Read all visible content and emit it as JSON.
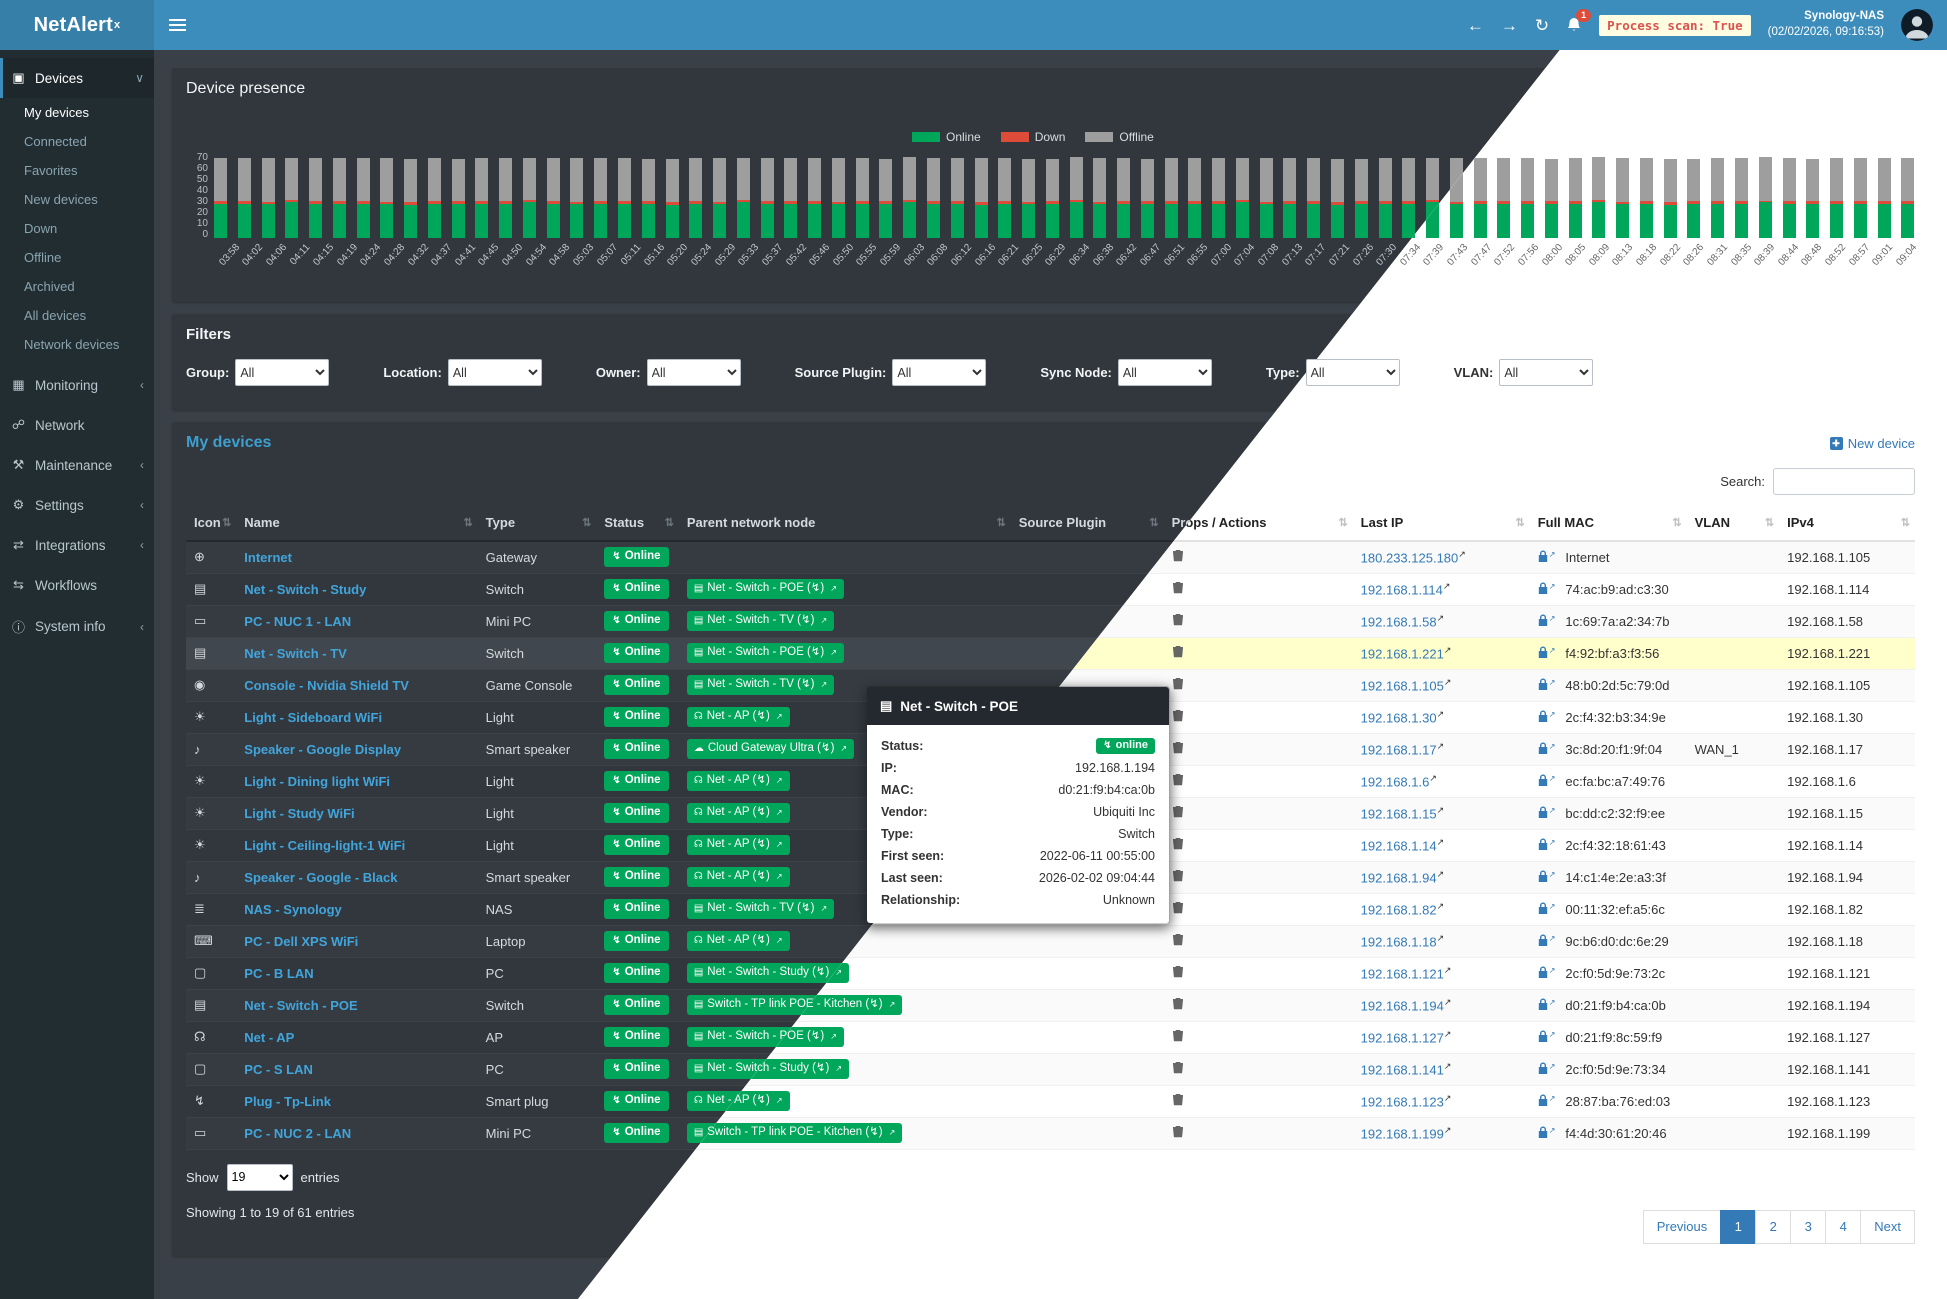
{
  "brand": {
    "name": "NetAlert",
    "sup": "x"
  },
  "header": {
    "notification_count": "1",
    "process_scan": "Process scan: True",
    "nas_name": "Synology-NAS",
    "nas_time": "(02/02/2026, 09:16:53)"
  },
  "colors": {
    "header": "#3c8dbc",
    "sidebar": "#222d32",
    "online": "#00a65a",
    "down": "#dd4b39",
    "offline": "#9e9e9e",
    "link_light": "#337ab7",
    "link_dark": "#41a5dc",
    "highlight_row": "#ffffcc",
    "process_scan_text": "#d9534f"
  },
  "icons": {
    "globe": "⊕",
    "switch": "▤",
    "minipc": "▭",
    "console": "◉",
    "light": "☀",
    "speaker": "♪",
    "nas": "≣",
    "laptop": "⌨",
    "desktop": "▢",
    "wifi": "☊",
    "cloud": "☁",
    "plug": "↯",
    "sort": "⇅",
    "ext": "↗"
  },
  "sidebar": {
    "sections": [
      {
        "label": "Devices",
        "icon": "devices-icon",
        "glyph": "▣",
        "chevron": "∨",
        "active": true,
        "children": [
          "My devices",
          "Connected",
          "Favorites",
          "New devices",
          "Down",
          "Offline",
          "Archived",
          "All devices",
          "Network devices"
        ]
      },
      {
        "label": "Monitoring",
        "icon": "monitoring-icon",
        "glyph": "▦",
        "chevron": "‹"
      },
      {
        "label": "Network",
        "icon": "network-icon",
        "glyph": "☍",
        "chevron": ""
      },
      {
        "label": "Maintenance",
        "icon": "maintenance-icon",
        "glyph": "⚒",
        "chevron": "‹"
      },
      {
        "label": "Settings",
        "icon": "settings-icon",
        "glyph": "⚙",
        "chevron": "‹"
      },
      {
        "label": "Integrations",
        "icon": "integrations-icon",
        "glyph": "⇄",
        "chevron": "‹"
      },
      {
        "label": "Workflows",
        "icon": "workflows-icon",
        "glyph": "⇆",
        "chevron": ""
      },
      {
        "label": "System info",
        "icon": "system-info-icon",
        "glyph": "ⓘ",
        "chevron": "‹"
      }
    ]
  },
  "chart": {
    "title": "Device presence",
    "y_ticks": [
      70,
      60,
      50,
      40,
      30,
      20,
      10,
      0
    ]
  },
  "chart_data": {
    "type": "bar",
    "stacked": true,
    "title": "Device presence",
    "xlabel": "",
    "ylabel": "",
    "ylim": [
      0,
      70
    ],
    "legend_position": "top",
    "grid": false,
    "categories": [
      "03:58",
      "04:02",
      "04:06",
      "04:11",
      "04:15",
      "04:19",
      "04:24",
      "04:28",
      "04:32",
      "04:37",
      "04:41",
      "04:45",
      "04:50",
      "04:54",
      "04:58",
      "05:03",
      "05:07",
      "05:11",
      "05:16",
      "05:20",
      "05:24",
      "05:29",
      "05:33",
      "05:37",
      "05:42",
      "05:46",
      "05:50",
      "05:55",
      "05:59",
      "06:03",
      "06:08",
      "06:12",
      "06:16",
      "06:21",
      "06:25",
      "06:29",
      "06:34",
      "06:38",
      "06:42",
      "06:47",
      "06:51",
      "06:55",
      "07:00",
      "07:04",
      "07:08",
      "07:13",
      "07:17",
      "07:21",
      "07:26",
      "07:30",
      "07:34",
      "07:39",
      "07:43",
      "07:47",
      "07:52",
      "07:56",
      "08:00",
      "08:05",
      "08:09",
      "08:13",
      "08:18",
      "08:22",
      "08:26",
      "08:31",
      "08:35",
      "08:39",
      "08:44",
      "08:48",
      "08:52",
      "08:57",
      "09:01",
      "09:04"
    ],
    "series": [
      {
        "name": "Online",
        "color": "#00a65a",
        "values": [
          28,
          28,
          28,
          29,
          28,
          28,
          28,
          28,
          27,
          28,
          28,
          28,
          28,
          29,
          28,
          28,
          28,
          28,
          28,
          27,
          28,
          28,
          29,
          28,
          28,
          28,
          28,
          28,
          28,
          29,
          28,
          28,
          27,
          28,
          28,
          28,
          29,
          28,
          28,
          28,
          28,
          28,
          28,
          29,
          28,
          28,
          28,
          27,
          28,
          28,
          28,
          29,
          28,
          28,
          28,
          28,
          28,
          28,
          29,
          28,
          28,
          27,
          28,
          28,
          28,
          29,
          28,
          28,
          28,
          28,
          28,
          28
        ]
      },
      {
        "name": "Down",
        "color": "#dd4b39",
        "values": [
          2,
          2,
          1,
          2,
          2,
          2,
          2,
          1,
          2,
          2,
          2,
          2,
          2,
          2,
          2,
          1,
          2,
          2,
          2,
          2,
          2,
          1,
          2,
          2,
          2,
          2,
          1,
          2,
          2,
          2,
          2,
          2,
          2,
          2,
          1,
          2,
          2,
          1,
          2,
          2,
          2,
          2,
          2,
          2,
          1,
          2,
          2,
          2,
          2,
          2,
          2,
          2,
          1,
          2,
          2,
          2,
          2,
          2,
          2,
          1,
          2,
          2,
          2,
          2,
          2,
          1,
          2,
          2,
          2,
          2,
          2,
          2
        ]
      },
      {
        "name": "Offline",
        "color": "#9e9e9e",
        "values": [
          35,
          35,
          36,
          34,
          35,
          35,
          35,
          36,
          35,
          35,
          34,
          35,
          35,
          34,
          35,
          36,
          35,
          35,
          34,
          35,
          35,
          36,
          34,
          35,
          35,
          35,
          36,
          35,
          34,
          35,
          35,
          35,
          36,
          35,
          35,
          34,
          35,
          36,
          35,
          34,
          35,
          35,
          35,
          34,
          36,
          35,
          35,
          35,
          34,
          35,
          35,
          34,
          36,
          35,
          35,
          35,
          34,
          35,
          35,
          36,
          35,
          35,
          34,
          35,
          35,
          36,
          35,
          34,
          35,
          35,
          35,
          35
        ]
      }
    ]
  },
  "filters": {
    "title": "Filters",
    "items": [
      {
        "key": "group",
        "label": "Group:",
        "value": "All"
      },
      {
        "key": "location",
        "label": "Location:",
        "value": "All"
      },
      {
        "key": "owner",
        "label": "Owner:",
        "value": "All"
      },
      {
        "key": "source-plugin",
        "label": "Source Plugin:",
        "value": "All"
      },
      {
        "key": "sync-node",
        "label": "Sync Node:",
        "value": "All"
      },
      {
        "key": "type",
        "label": "Type:",
        "value": "All"
      },
      {
        "key": "vlan",
        "label": "VLAN:",
        "value": "All"
      }
    ]
  },
  "devices": {
    "title": "My devices",
    "new_device_label": "New device",
    "search_label": "Search:",
    "show_label": "Show",
    "show_value": "19",
    "entries_label": "entries",
    "summary": "Showing 1 to 19 of 61 entries",
    "pagination": {
      "prev": "Previous",
      "pages": [
        "1",
        "2",
        "3",
        "4"
      ],
      "active": "1",
      "next": "Next"
    }
  },
  "table": {
    "columns": [
      {
        "key": "icon",
        "label": "Icon"
      },
      {
        "key": "name",
        "label": "Name"
      },
      {
        "key": "type",
        "label": "Type"
      },
      {
        "key": "status",
        "label": "Status"
      },
      {
        "key": "parent",
        "label": "Parent network node"
      },
      {
        "key": "src",
        "label": "Source Plugin"
      },
      {
        "key": "props",
        "label": "Props / Actions"
      },
      {
        "key": "lastip",
        "label": "Last IP"
      },
      {
        "key": "mac",
        "label": "Full MAC"
      },
      {
        "key": "vlan",
        "label": "VLAN"
      },
      {
        "key": "ipv4",
        "label": "IPv4"
      }
    ],
    "rows": [
      {
        "icon": "globe",
        "name": "Internet",
        "type": "Gateway",
        "status": "Online",
        "parent": null,
        "src": "",
        "last_ip": "180.233.125.180",
        "mac": "Internet",
        "vlan": "",
        "ipv4": "192.168.1.105",
        "highlight": false
      },
      {
        "icon": "switch",
        "name": "Net - Switch - Study",
        "type": "Switch",
        "status": "Online",
        "parent": {
          "icon": "switch",
          "label": "Net - Switch - POE"
        },
        "src": "",
        "last_ip": "192.168.1.114",
        "mac": "74:ac:b9:ad:c3:30",
        "vlan": "",
        "ipv4": "192.168.1.114",
        "highlight": false
      },
      {
        "icon": "minipc",
        "name": "PC - NUC 1 - LAN",
        "type": "Mini PC",
        "status": "Online",
        "parent": {
          "icon": "switch",
          "label": "Net - Switch - TV"
        },
        "src": "",
        "last_ip": "192.168.1.58",
        "mac": "1c:69:7a:a2:34:7b",
        "vlan": "",
        "ipv4": "192.168.1.58",
        "highlight": false
      },
      {
        "icon": "switch",
        "name": "Net - Switch - TV",
        "type": "Switch",
        "status": "Online",
        "parent": {
          "icon": "switch",
          "label": "Net - Switch - POE"
        },
        "src": "",
        "last_ip": "192.168.1.221",
        "mac": "f4:92:bf:a3:f3:56",
        "vlan": "",
        "ipv4": "192.168.1.221",
        "highlight": true
      },
      {
        "icon": "console",
        "name": "Console - Nvidia Shield TV",
        "type": "Game Console",
        "status": "Online",
        "parent": {
          "icon": "switch",
          "label": "Net - Switch - TV"
        },
        "src": "",
        "last_ip": "192.168.1.105",
        "mac": "48:b0:2d:5c:79:0d",
        "vlan": "",
        "ipv4": "192.168.1.105",
        "highlight": false
      },
      {
        "icon": "light",
        "name": "Light - Sideboard WiFi",
        "type": "Light",
        "status": "Online",
        "parent": {
          "icon": "wifi",
          "label": "Net - AP"
        },
        "src": "",
        "last_ip": "192.168.1.30",
        "mac": "2c:f4:32:b3:34:9e",
        "vlan": "",
        "ipv4": "192.168.1.30",
        "highlight": false
      },
      {
        "icon": "speaker",
        "name": "Speaker - Google Display",
        "type": "Smart speaker",
        "status": "Online",
        "parent": {
          "icon": "cloud",
          "label": "Cloud Gateway Ultra"
        },
        "src": "",
        "last_ip": "192.168.1.17",
        "mac": "3c:8d:20:f1:9f:04",
        "vlan": "WAN_1",
        "ipv4": "192.168.1.17",
        "highlight": false
      },
      {
        "icon": "light",
        "name": "Light - Dining light WiFi",
        "type": "Light",
        "status": "Online",
        "parent": {
          "icon": "wifi",
          "label": "Net - AP"
        },
        "src": "",
        "last_ip": "192.168.1.6",
        "mac": "ec:fa:bc:a7:49:76",
        "vlan": "",
        "ipv4": "192.168.1.6",
        "highlight": false
      },
      {
        "icon": "light",
        "name": "Light - Study WiFi",
        "type": "Light",
        "status": "Online",
        "parent": {
          "icon": "wifi",
          "label": "Net - AP"
        },
        "src": "",
        "last_ip": "192.168.1.15",
        "mac": "bc:dd:c2:32:f9:ee",
        "vlan": "",
        "ipv4": "192.168.1.15",
        "highlight": false
      },
      {
        "icon": "light",
        "name": "Light - Ceiling-light-1 WiFi",
        "type": "Light",
        "status": "Online",
        "parent": {
          "icon": "wifi",
          "label": "Net - AP"
        },
        "src": "",
        "last_ip": "192.168.1.14",
        "mac": "2c:f4:32:18:61:43",
        "vlan": "",
        "ipv4": "192.168.1.14",
        "highlight": false
      },
      {
        "icon": "speaker",
        "name": "Speaker - Google - Black",
        "type": "Smart speaker",
        "status": "Online",
        "parent": {
          "icon": "wifi",
          "label": "Net - AP"
        },
        "src": "",
        "last_ip": "192.168.1.94",
        "mac": "14:c1:4e:2e:a3:3f",
        "vlan": "",
        "ipv4": "192.168.1.94",
        "highlight": false
      },
      {
        "icon": "nas",
        "name": "NAS - Synology",
        "type": "NAS",
        "status": "Online",
        "parent": {
          "icon": "switch",
          "label": "Net - Switch - TV"
        },
        "src": "",
        "last_ip": "192.168.1.82",
        "mac": "00:11:32:ef:a5:6c",
        "vlan": "",
        "ipv4": "192.168.1.82",
        "highlight": false
      },
      {
        "icon": "laptop",
        "name": "PC - Dell XPS WiFi",
        "type": "Laptop",
        "status": "Online",
        "parent": {
          "icon": "wifi",
          "label": "Net - AP"
        },
        "src": "",
        "last_ip": "192.168.1.18",
        "mac": "9c:b6:d0:dc:6e:29",
        "vlan": "",
        "ipv4": "192.168.1.18",
        "highlight": false
      },
      {
        "icon": "desktop",
        "name": "PC - B LAN",
        "type": "PC",
        "status": "Online",
        "parent": {
          "icon": "switch",
          "label": "Net - Switch - Study"
        },
        "src": "",
        "last_ip": "192.168.1.121",
        "mac": "2c:f0:5d:9e:73:2c",
        "vlan": "",
        "ipv4": "192.168.1.121",
        "highlight": false
      },
      {
        "icon": "switch",
        "name": "Net - Switch - POE",
        "type": "Switch",
        "status": "Online",
        "parent": {
          "icon": "switch",
          "label": "Switch - TP link POE - Kitchen"
        },
        "src": "",
        "last_ip": "192.168.1.194",
        "mac": "d0:21:f9:b4:ca:0b",
        "vlan": "",
        "ipv4": "192.168.1.194",
        "highlight": false
      },
      {
        "icon": "wifi",
        "name": "Net - AP",
        "type": "AP",
        "status": "Online",
        "parent": {
          "icon": "switch",
          "label": "Net - Switch - POE"
        },
        "src": "",
        "last_ip": "192.168.1.127",
        "mac": "d0:21:f9:8c:59:f9",
        "vlan": "",
        "ipv4": "192.168.1.127",
        "highlight": false
      },
      {
        "icon": "desktop",
        "name": "PC - S LAN",
        "type": "PC",
        "status": "Online",
        "parent": {
          "icon": "switch",
          "label": "Net - Switch - Study"
        },
        "src": "",
        "last_ip": "192.168.1.141",
        "mac": "2c:f0:5d:9e:73:34",
        "vlan": "",
        "ipv4": "192.168.1.141",
        "highlight": false
      },
      {
        "icon": "plug",
        "name": "Plug - Tp-Link",
        "type": "Smart plug",
        "status": "Online",
        "parent": {
          "icon": "wifi",
          "label": "Net - AP"
        },
        "src": "",
        "last_ip": "192.168.1.123",
        "mac": "28:87:ba:76:ed:03",
        "vlan": "",
        "ipv4": "192.168.1.123",
        "highlight": false
      },
      {
        "icon": "minipc",
        "name": "PC - NUC 2 - LAN",
        "type": "Mini PC",
        "status": "Online",
        "parent": {
          "icon": "switch",
          "label": "Switch - TP link POE - Kitchen"
        },
        "src": "",
        "last_ip": "192.168.1.199",
        "mac": "f4:4d:30:61:20:46",
        "vlan": "",
        "ipv4": "192.168.1.199",
        "highlight": false
      }
    ]
  },
  "tooltip": {
    "title": "Net - Switch - POE",
    "status_label": "Status:",
    "status": "online",
    "fields": [
      {
        "label": "IP:",
        "value": "192.168.1.194"
      },
      {
        "label": "MAC:",
        "value": "d0:21:f9:b4:ca:0b"
      },
      {
        "label": "Vendor:",
        "value": "Ubiquiti Inc"
      },
      {
        "label": "Type:",
        "value": "Switch"
      },
      {
        "label": "First seen:",
        "value": "2022-06-11 00:55:00"
      },
      {
        "label": "Last seen:",
        "value": "2026-02-02 09:04:44"
      },
      {
        "label": "Relationship:",
        "value": "Unknown"
      }
    ]
  }
}
